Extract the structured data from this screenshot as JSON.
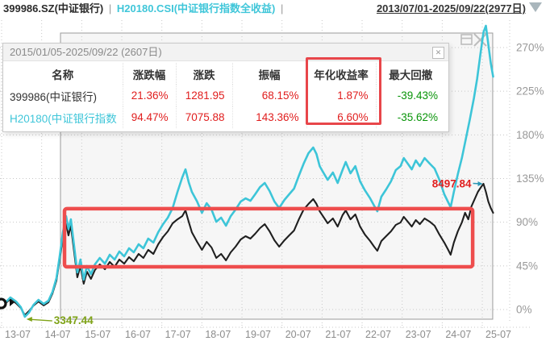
{
  "header": {
    "symbol_primary": "399986.SZ(中证银行)",
    "separator": "|",
    "symbol_secondary": "H20180.CSI(中证银行指数全收益)",
    "separator2": "|",
    "date_range": "2013/07/01-2025/09/22(2977日)",
    "dropdown_icon": "triangle-down-icon"
  },
  "tooltip": {
    "title": "2015/01/05-2025/09/22 (2607日)",
    "close_label": "✕",
    "columns": [
      "名称",
      "涨跌幅",
      "涨跌",
      "振幅",
      "年化收益率",
      "最大回撤"
    ],
    "highlight_column": "年化收益率",
    "rows": [
      {
        "name": "399986(中证银行)",
        "name_color": "dark",
        "values": [
          "21.36%",
          "1281.95",
          "68.15%",
          "1.87%",
          "-39.43%"
        ]
      },
      {
        "name": "H20180(中证银行指数",
        "name_color": "cyan",
        "values": [
          "94.47%",
          "7075.88",
          "143.36%",
          "6.60%",
          "-35.62%"
        ]
      }
    ]
  },
  "chart_data": {
    "type": "line",
    "title": "",
    "xlabel": "",
    "ylabel": "",
    "grid": true,
    "legend_position": "none",
    "y_axis": {
      "tick_labels": [
        "0%",
        "45%",
        "90%",
        "135%",
        "180%",
        "225%",
        "270%"
      ],
      "tick_values": [
        0,
        45,
        90,
        135,
        180,
        225,
        270
      ],
      "side": "right",
      "ylim": [
        -12,
        296
      ]
    },
    "x_axis": {
      "tick_labels": [
        "13-07",
        "14-07",
        "15-07",
        "16-07",
        "17-07",
        "18-07",
        "19-07",
        "20-07",
        "21-07",
        "22-07",
        "23-07",
        "24-07",
        "25-07"
      ],
      "tick_years": [
        2013.54,
        2014.54,
        2015.54,
        2016.54,
        2017.54,
        2018.54,
        2019.54,
        2020.54,
        2021.54,
        2022.54,
        2023.54,
        2024.54,
        2025.54
      ]
    },
    "selection": {
      "start_year": 2015.01,
      "end_year": 2025.8
    },
    "annotations": {
      "low": {
        "label": "3347.44",
        "year": 2014.12,
        "pct": -7.5,
        "color": "#7fa318"
      },
      "peak": {
        "label": "8497.84",
        "year": 2025.57,
        "pct": 129.6,
        "color": "#e02020",
        "arrow_color": "#2a96b4"
      },
      "red_box": {
        "year_start": 2015.11,
        "year_end": 2025.3,
        "pct_top": 104,
        "pct_bottom": 44,
        "color": "#ee4d4d"
      },
      "start_marker": {
        "year": 2013.55,
        "pct": 7,
        "shape": "ring-with-arrow"
      }
    },
    "series": [
      {
        "name": "399986(中证银行)",
        "color": "#1f1f1f",
        "points": [
          [
            2013.5,
            10.0
          ],
          [
            2013.62,
            5.8
          ],
          [
            2013.76,
            10.8
          ],
          [
            2013.9,
            6.6
          ],
          [
            2014.02,
            1.7
          ],
          [
            2014.12,
            -5.8
          ],
          [
            2014.22,
            -1.7
          ],
          [
            2014.34,
            4.2
          ],
          [
            2014.46,
            8.3
          ],
          [
            2014.59,
            4.2
          ],
          [
            2014.71,
            7.5
          ],
          [
            2014.81,
            16.6
          ],
          [
            2014.91,
            29.9
          ],
          [
            2014.99,
            51.5
          ],
          [
            2015.07,
            73.9
          ],
          [
            2015.15,
            88.0
          ],
          [
            2015.21,
            76.4
          ],
          [
            2015.27,
            86.4
          ],
          [
            2015.35,
            59.8
          ],
          [
            2015.43,
            33.2
          ],
          [
            2015.51,
            44.9
          ],
          [
            2015.59,
            26.6
          ],
          [
            2015.67,
            39.0
          ],
          [
            2015.77,
            31.6
          ],
          [
            2015.87,
            40.7
          ],
          [
            2015.99,
            46.5
          ],
          [
            2016.12,
            41.5
          ],
          [
            2016.24,
            49.0
          ],
          [
            2016.36,
            44.0
          ],
          [
            2016.48,
            51.5
          ],
          [
            2016.6,
            47.3
          ],
          [
            2016.72,
            54.0
          ],
          [
            2016.84,
            49.8
          ],
          [
            2016.96,
            57.3
          ],
          [
            2017.08,
            53.2
          ],
          [
            2017.2,
            61.5
          ],
          [
            2017.33,
            57.3
          ],
          [
            2017.45,
            67.3
          ],
          [
            2017.57,
            74.8
          ],
          [
            2017.69,
            80.6
          ],
          [
            2017.81,
            88.9
          ],
          [
            2017.93,
            93.0
          ],
          [
            2018.05,
            96.3
          ],
          [
            2018.13,
            102.2
          ],
          [
            2018.21,
            90.5
          ],
          [
            2018.29,
            79.7
          ],
          [
            2018.42,
            69.8
          ],
          [
            2018.54,
            61.5
          ],
          [
            2018.66,
            69.8
          ],
          [
            2018.78,
            64.0
          ],
          [
            2018.9,
            53.2
          ],
          [
            2019.02,
            57.3
          ],
          [
            2019.14,
            50.7
          ],
          [
            2019.26,
            59.0
          ],
          [
            2019.38,
            64.8
          ],
          [
            2019.51,
            72.3
          ],
          [
            2019.63,
            75.6
          ],
          [
            2019.75,
            73.1
          ],
          [
            2019.87,
            78.1
          ],
          [
            2019.99,
            83.9
          ],
          [
            2020.11,
            88.0
          ],
          [
            2020.23,
            80.6
          ],
          [
            2020.35,
            71.4
          ],
          [
            2020.47,
            64.8
          ],
          [
            2020.6,
            71.4
          ],
          [
            2020.72,
            76.4
          ],
          [
            2020.84,
            81.4
          ],
          [
            2020.96,
            93.0
          ],
          [
            2021.08,
            103.0
          ],
          [
            2021.2,
            108.8
          ],
          [
            2021.32,
            113.8
          ],
          [
            2021.4,
            108.8
          ],
          [
            2021.48,
            101.3
          ],
          [
            2021.56,
            96.3
          ],
          [
            2021.68,
            88.9
          ],
          [
            2021.81,
            93.9
          ],
          [
            2021.93,
            85.5
          ],
          [
            2022.05,
            97.2
          ],
          [
            2022.13,
            102.2
          ],
          [
            2022.25,
            93.0
          ],
          [
            2022.37,
            98.0
          ],
          [
            2022.49,
            85.5
          ],
          [
            2022.61,
            77.2
          ],
          [
            2022.74,
            70.6
          ],
          [
            2022.84,
            64.8
          ],
          [
            2022.92,
            60.6
          ],
          [
            2023.02,
            70.6
          ],
          [
            2023.14,
            75.6
          ],
          [
            2023.26,
            80.6
          ],
          [
            2023.38,
            87.2
          ],
          [
            2023.5,
            89.7
          ],
          [
            2023.58,
            95.5
          ],
          [
            2023.68,
            90.5
          ],
          [
            2023.78,
            85.5
          ],
          [
            2023.88,
            92.2
          ],
          [
            2023.98,
            88.0
          ],
          [
            2024.1,
            93.9
          ],
          [
            2024.23,
            90.5
          ],
          [
            2024.35,
            86.4
          ],
          [
            2024.47,
            77.2
          ],
          [
            2024.59,
            69.0
          ],
          [
            2024.69,
            61.5
          ],
          [
            2024.75,
            56.5
          ],
          [
            2024.83,
            69.0
          ],
          [
            2024.93,
            80.6
          ],
          [
            2025.03,
            89.7
          ],
          [
            2025.11,
            99.7
          ],
          [
            2025.19,
            93.0
          ],
          [
            2025.27,
            106.3
          ],
          [
            2025.35,
            113.8
          ],
          [
            2025.43,
            121.3
          ],
          [
            2025.51,
            126.2
          ],
          [
            2025.57,
            129.6
          ],
          [
            2025.63,
            121.3
          ],
          [
            2025.69,
            111.3
          ],
          [
            2025.75,
            104.7
          ],
          [
            2025.81,
            99.7
          ]
        ]
      },
      {
        "name": "H20180(中证银行指数全收益)",
        "color": "#3dc5d8",
        "points": [
          [
            2013.5,
            10.8
          ],
          [
            2013.62,
            6.6
          ],
          [
            2013.76,
            12.5
          ],
          [
            2013.9,
            8.3
          ],
          [
            2014.02,
            2.5
          ],
          [
            2014.12,
            -7.5
          ],
          [
            2014.22,
            -3.3
          ],
          [
            2014.34,
            5.0
          ],
          [
            2014.46,
            10.0
          ],
          [
            2014.59,
            5.8
          ],
          [
            2014.71,
            9.1
          ],
          [
            2014.81,
            18.3
          ],
          [
            2014.91,
            32.4
          ],
          [
            2014.99,
            54.8
          ],
          [
            2015.07,
            79.7
          ],
          [
            2015.15,
            96.3
          ],
          [
            2015.21,
            83.1
          ],
          [
            2015.27,
            93.0
          ],
          [
            2015.35,
            65.6
          ],
          [
            2015.43,
            38.2
          ],
          [
            2015.51,
            51.5
          ],
          [
            2015.59,
            30.7
          ],
          [
            2015.67,
            44.9
          ],
          [
            2015.77,
            36.5
          ],
          [
            2015.87,
            46.5
          ],
          [
            2015.99,
            53.2
          ],
          [
            2016.12,
            47.3
          ],
          [
            2016.24,
            56.5
          ],
          [
            2016.36,
            51.5
          ],
          [
            2016.48,
            59.8
          ],
          [
            2016.6,
            54.8
          ],
          [
            2016.72,
            63.1
          ],
          [
            2016.84,
            59.0
          ],
          [
            2016.96,
            67.3
          ],
          [
            2017.08,
            63.1
          ],
          [
            2017.2,
            73.1
          ],
          [
            2017.33,
            69.0
          ],
          [
            2017.45,
            79.7
          ],
          [
            2017.57,
            88.0
          ],
          [
            2017.69,
            94.7
          ],
          [
            2017.81,
            104.7
          ],
          [
            2017.93,
            121.3
          ],
          [
            2018.05,
            136.2
          ],
          [
            2018.13,
            144.5
          ],
          [
            2018.21,
            131.2
          ],
          [
            2018.29,
            121.3
          ],
          [
            2018.42,
            111.3
          ],
          [
            2018.54,
            99.7
          ],
          [
            2018.66,
            109.6
          ],
          [
            2018.78,
            103.0
          ],
          [
            2018.9,
            90.5
          ],
          [
            2019.02,
            94.7
          ],
          [
            2019.14,
            86.4
          ],
          [
            2019.26,
            96.3
          ],
          [
            2019.38,
            103.0
          ],
          [
            2019.51,
            111.3
          ],
          [
            2019.63,
            114.6
          ],
          [
            2019.75,
            112.1
          ],
          [
            2019.87,
            118.8
          ],
          [
            2019.99,
            126.2
          ],
          [
            2020.11,
            130.4
          ],
          [
            2020.23,
            122.1
          ],
          [
            2020.35,
            111.3
          ],
          [
            2020.47,
            104.7
          ],
          [
            2020.6,
            113.0
          ],
          [
            2020.72,
            118.8
          ],
          [
            2020.84,
            124.6
          ],
          [
            2020.96,
            137.9
          ],
          [
            2021.08,
            150.3
          ],
          [
            2021.2,
            161.1
          ],
          [
            2021.32,
            167.0
          ],
          [
            2021.4,
            160.3
          ],
          [
            2021.48,
            147.8
          ],
          [
            2021.56,
            142.0
          ],
          [
            2021.68,
            133.7
          ],
          [
            2021.81,
            141.2
          ],
          [
            2021.93,
            130.4
          ],
          [
            2022.05,
            143.7
          ],
          [
            2022.13,
            152.0
          ],
          [
            2022.25,
            140.4
          ],
          [
            2022.37,
            147.8
          ],
          [
            2022.49,
            132.1
          ],
          [
            2022.61,
            122.9
          ],
          [
            2022.74,
            114.6
          ],
          [
            2022.84,
            107.1
          ],
          [
            2022.92,
            101.3
          ],
          [
            2023.02,
            116.3
          ],
          [
            2023.14,
            123.8
          ],
          [
            2023.26,
            132.1
          ],
          [
            2023.38,
            143.7
          ],
          [
            2023.5,
            147.8
          ],
          [
            2023.58,
            156.1
          ],
          [
            2023.68,
            150.3
          ],
          [
            2023.78,
            144.5
          ],
          [
            2023.88,
            153.7
          ],
          [
            2023.98,
            147.8
          ],
          [
            2024.1,
            156.1
          ],
          [
            2024.23,
            150.3
          ],
          [
            2024.35,
            145.3
          ],
          [
            2024.47,
            133.7
          ],
          [
            2024.59,
            118.8
          ],
          [
            2024.69,
            110.5
          ],
          [
            2024.75,
            105.5
          ],
          [
            2024.83,
            121.3
          ],
          [
            2024.93,
            139.5
          ],
          [
            2025.03,
            156.1
          ],
          [
            2025.13,
            176.1
          ],
          [
            2025.23,
            196.0
          ],
          [
            2025.33,
            217.6
          ],
          [
            2025.41,
            237.5
          ],
          [
            2025.49,
            262.5
          ],
          [
            2025.57,
            285.7
          ],
          [
            2025.63,
            292.4
          ],
          [
            2025.69,
            273.3
          ],
          [
            2025.75,
            254.2
          ],
          [
            2025.81,
            240.0
          ]
        ]
      }
    ]
  },
  "colors": {
    "accent_cyan": "#3fc6d9",
    "value_red": "#e01d1d",
    "value_green": "#089408",
    "annotation_red": "#ee4d4d",
    "annotation_green": "#7fa318",
    "grid": "#c8c8c8",
    "axis_text": "#999999"
  },
  "icons": {
    "toolbox": [
      "window-icon",
      "close-icon"
    ]
  }
}
